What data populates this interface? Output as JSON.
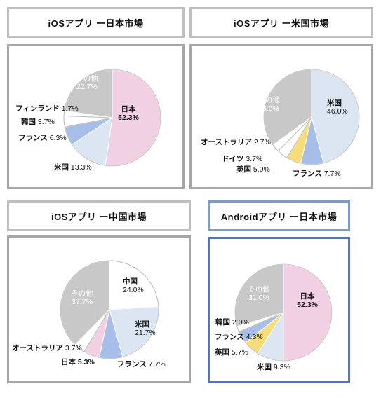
{
  "colors": {
    "japan": "#f2d0e4",
    "us": "#dce6f2",
    "france": "#a7bfe8",
    "uk": "#f7dc7a",
    "germany": "#f7dc7a",
    "other": "#c8c8c8",
    "white": "#ffffff",
    "slice_stroke": "#ffffff",
    "outline": "#bdbdbd",
    "other_text": "#ffffff"
  },
  "chart_data": [
    {
      "type": "pie",
      "title": "iOSアプリ ー日本市場",
      "slices": [
        {
          "name": "日本",
          "value": 52.3,
          "label": "52.3%",
          "color_key": "japan",
          "bold": true,
          "inside": true
        },
        {
          "name": "米国",
          "value": 13.3,
          "label": "13.3%",
          "color_key": "us"
        },
        {
          "name": "フランス",
          "value": 6.3,
          "label": "6.3%",
          "color_key": "france"
        },
        {
          "name": "韓国",
          "value": 3.7,
          "label": "3.7%",
          "color_key": "white"
        },
        {
          "name": "フィンランド",
          "value": 1.7,
          "label": "1.7%",
          "color_key": "white"
        },
        {
          "name": "その他",
          "value": 22.7,
          "label": "22.7%",
          "color_key": "other",
          "inside": true,
          "light": true
        }
      ]
    },
    {
      "type": "pie",
      "title": "iOSアプリ ー米国市場",
      "slices": [
        {
          "name": "米国",
          "value": 46.0,
          "label": "46.0%",
          "color_key": "us",
          "inside": true
        },
        {
          "name": "フランス",
          "value": 7.7,
          "label": "7.7%",
          "color_key": "france"
        },
        {
          "name": "英国",
          "value": 5.0,
          "label": "5.0%",
          "color_key": "uk"
        },
        {
          "name": "ドイツ",
          "value": 3.7,
          "label": "3.7%",
          "color_key": "white"
        },
        {
          "name": "オーストラリア",
          "value": 2.7,
          "label": "2.7%",
          "color_key": "white"
        },
        {
          "name": "その他",
          "value": 35.0,
          "label": "35.0%",
          "color_key": "other",
          "inside": true,
          "light": true
        }
      ]
    },
    {
      "type": "pie",
      "title": "iOSアプリ ー中国市場",
      "slices": [
        {
          "name": "中国",
          "value": 24.0,
          "label": "24.0%",
          "color_key": "white",
          "inside": true
        },
        {
          "name": "米国",
          "value": 21.7,
          "label": "21.7%",
          "color_key": "us",
          "inside": true
        },
        {
          "name": "フランス",
          "value": 7.7,
          "label": "7.7%",
          "color_key": "france"
        },
        {
          "name": "日本",
          "value": 5.3,
          "label": "5.3%",
          "color_key": "japan",
          "bold": true
        },
        {
          "name": "オーストラリア",
          "value": 3.7,
          "label": "3.7%",
          "color_key": "white"
        },
        {
          "name": "その他",
          "value": 37.7,
          "label": "37.7%",
          "color_key": "other",
          "inside": true,
          "light": true
        }
      ]
    },
    {
      "type": "pie",
      "title": "Androidアプリ ー日本市場",
      "slices": [
        {
          "name": "日本",
          "value": 52.3,
          "label": "52.3%",
          "color_key": "japan",
          "bold": true,
          "inside": true
        },
        {
          "name": "米国",
          "value": 9.3,
          "label": "9.3%",
          "color_key": "us"
        },
        {
          "name": "英国",
          "value": 5.7,
          "label": "5.7%",
          "color_key": "uk"
        },
        {
          "name": "フランス",
          "value": 4.3,
          "label": "4.3%",
          "color_key": "france"
        },
        {
          "name": "韓国",
          "value": 2.0,
          "label": "2.0%",
          "color_key": "white"
        },
        {
          "name": "その他",
          "value": 31.0,
          "label": "31.0%",
          "color_key": "other",
          "inside": true,
          "light": true
        }
      ]
    }
  ]
}
